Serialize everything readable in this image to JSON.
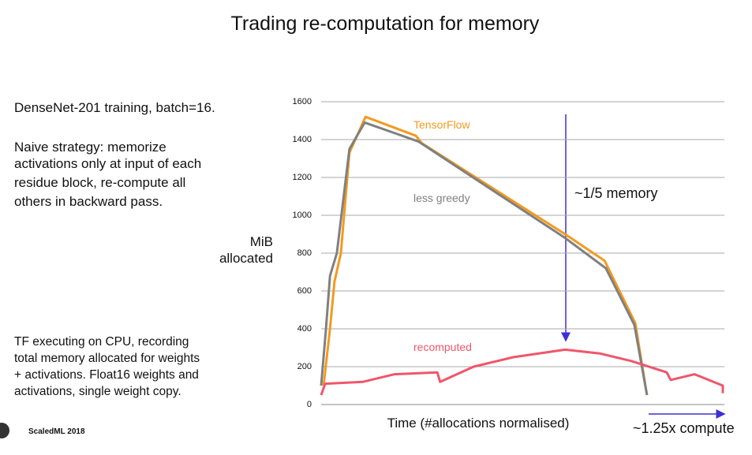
{
  "chart_data": {
    "type": "line",
    "title": "Trading re-computation for memory",
    "notes": [
      "DenseNet-201 training, batch=16.",
      "Naive strategy: memorize",
      "activations only at input of each",
      "residue block, re-compute all",
      "others in backward pass."
    ],
    "notes2": [
      "TF executing on CPU, recording",
      "total memory allocated for weights",
      "+ activations.  Float16 weights and",
      "activations, single weight copy."
    ],
    "y_label": [
      "MiB",
      "allocated"
    ],
    "x_label": "Time (#allocations normalised)",
    "footer": "ScaledML 2018",
    "annotations": [
      "~1/5 memory",
      "~1.25x compute"
    ],
    "xlim": [
      0,
      1
    ],
    "ylim": [
      0,
      1600
    ],
    "yticks": [
      0,
      200,
      400,
      600,
      800,
      1000,
      1200,
      1400,
      1600
    ],
    "grid": true,
    "series": [
      {
        "name": "TensorFlow",
        "color": "#f39a1e",
        "x": [
          0.006,
          0.022,
          0.033,
          0.049,
          0.07,
          0.11,
          0.235,
          0.25,
          0.605,
          0.703,
          0.779,
          0.808
        ],
        "values": [
          100,
          400,
          650,
          800,
          1330,
          1520,
          1420,
          1380,
          900,
          760,
          430,
          50
        ]
      },
      {
        "name": "less greedy",
        "color": "#808080",
        "x": [
          0,
          0.012,
          0.022,
          0.039,
          0.07,
          0.108,
          0.241,
          0.605,
          0.706,
          0.777,
          0.808
        ],
        "values": [
          100,
          400,
          680,
          800,
          1350,
          1490,
          1390,
          880,
          720,
          420,
          50
        ]
      },
      {
        "name": "recomputed",
        "color": "#f0566a",
        "x": [
          0,
          0.01,
          0.104,
          0.182,
          0.288,
          0.295,
          0.378,
          0.476,
          0.605,
          0.691,
          0.769,
          0.857,
          0.867,
          0.926,
          0.996,
          0.996
        ],
        "values": [
          50,
          110,
          120,
          160,
          170,
          120,
          200,
          250,
          290,
          270,
          230,
          170,
          130,
          160,
          100,
          60
        ]
      }
    ]
  }
}
